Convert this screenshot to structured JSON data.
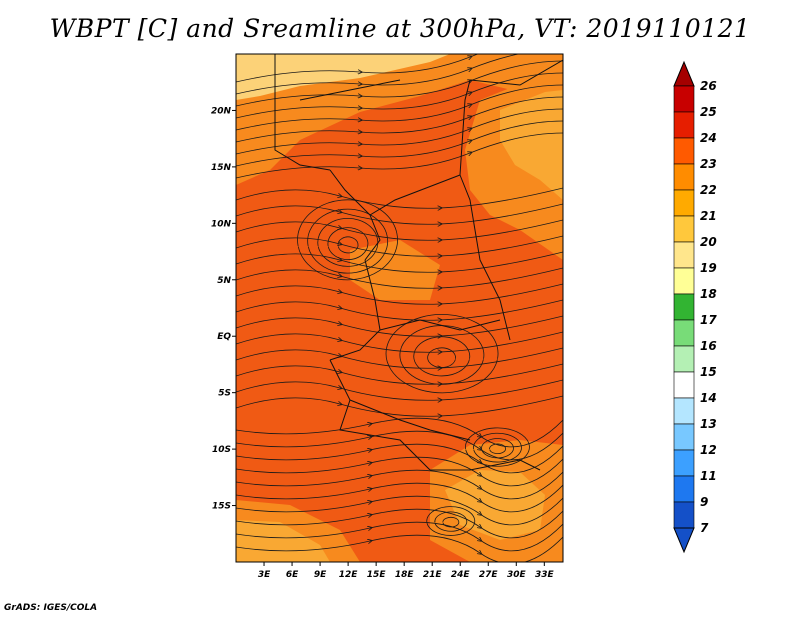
{
  "title": "WBPT [C] and Sreamline at 300hPa, VT: 2019110121",
  "credit": "GrADS: IGES/COLA",
  "map": {
    "x_ticks": [
      "3E",
      "6E",
      "9E",
      "12E",
      "15E",
      "18E",
      "21E",
      "24E",
      "27E",
      "30E",
      "33E"
    ],
    "y_ticks": [
      "20N",
      "15N",
      "10N",
      "5N",
      "EQ",
      "5S",
      "10S",
      "15S"
    ]
  },
  "colorbar": {
    "levels": [
      "26",
      "25",
      "24",
      "23",
      "22",
      "21",
      "20",
      "19",
      "18",
      "17",
      "16",
      "15",
      "14",
      "13",
      "12",
      "11",
      "9",
      "7"
    ],
    "colors": [
      "#a50000",
      "#c80000",
      "#e61e00",
      "#ff5a00",
      "#ff8c00",
      "#ffaa00",
      "#ffc83c",
      "#ffe68c",
      "#ffff96",
      "#32b432",
      "#78dc78",
      "#b4f0b4",
      "#ffffff",
      "#b4e6ff",
      "#78c8ff",
      "#3ca0ff",
      "#1e78f0",
      "#1450c8"
    ]
  },
  "field_colors": {
    "deep": "#f05a14",
    "mid": "#f78a1e",
    "warm": "#f9a833",
    "pale": "#fcd278",
    "streamline": "#1a1a1a",
    "border": "#111111"
  }
}
